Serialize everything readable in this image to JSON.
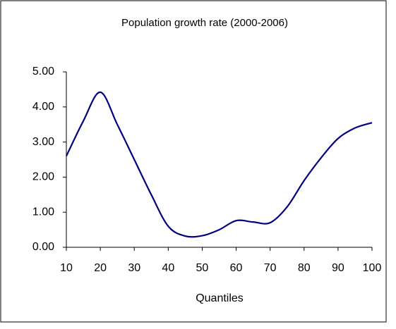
{
  "chart_data": {
    "type": "line",
    "title": "Population growth rate (2000-2006)",
    "x_label": "Quantiles",
    "x": [
      10,
      15,
      20,
      25,
      30,
      35,
      40,
      45,
      50,
      55,
      60,
      65,
      70,
      75,
      80,
      85,
      90,
      95,
      100
    ],
    "series": [
      {
        "color": "#000080",
        "values": [
          2.6,
          3.6,
          4.42,
          3.5,
          2.5,
          1.5,
          0.6,
          0.32,
          0.33,
          0.5,
          0.76,
          0.72,
          0.7,
          1.15,
          1.9,
          2.55,
          3.1,
          3.4,
          3.55
        ]
      }
    ],
    "xlim": [
      10,
      100
    ],
    "xticks": [
      10,
      20,
      30,
      40,
      50,
      60,
      70,
      80,
      90,
      100
    ],
    "ylim": [
      0,
      5
    ],
    "yticks": [
      {
        "value": 0,
        "label": "0.00"
      },
      {
        "value": 1,
        "label": "1.00"
      },
      {
        "value": 2,
        "label": "2.00"
      },
      {
        "value": 3,
        "label": "3.00"
      },
      {
        "value": 4,
        "label": "4.00"
      },
      {
        "value": 5,
        "label": "5.00"
      }
    ]
  }
}
